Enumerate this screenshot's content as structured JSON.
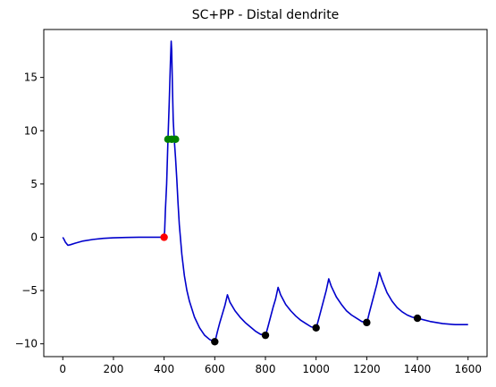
{
  "chart_data": {
    "type": "line",
    "title": "SC+PP - Distal dendrite",
    "xlabel": "",
    "ylabel": "",
    "xlim": [
      -75,
      1675
    ],
    "ylim": [
      -11.2,
      19.5
    ],
    "x_ticks": [
      0,
      200,
      400,
      600,
      800,
      1000,
      1200,
      1400,
      1600
    ],
    "x_tick_labels": [
      "0",
      "200",
      "400",
      "600",
      "800",
      "1000",
      "1200",
      "1400",
      "1600"
    ],
    "y_ticks": [
      -10,
      -5,
      0,
      5,
      10,
      15
    ],
    "y_tick_labels": [
      "−10",
      "−5",
      "0",
      "5",
      "10",
      "15"
    ],
    "grid": false,
    "legend": "none",
    "colors": {
      "line": "#0000cc",
      "red_marker": "#ff0000",
      "green_marker": "#008000",
      "black_marker": "#000000"
    },
    "series": [
      {
        "style": "line",
        "color": "#0000cc",
        "x": [
          0,
          5,
          10,
          20,
          30,
          50,
          80,
          120,
          160,
          200,
          250,
          300,
          350,
          398,
          402,
          405,
          410,
          415,
          420,
          425,
          428,
          430,
          433,
          436,
          440,
          445,
          450,
          455,
          460,
          470,
          480,
          490,
          500,
          520,
          540,
          560,
          580,
          600,
          603,
          610,
          620,
          630,
          640,
          650,
          660,
          680,
          700,
          720,
          740,
          760,
          780,
          800,
          803,
          810,
          820,
          830,
          840,
          850,
          860,
          880,
          900,
          920,
          940,
          960,
          980,
          1000,
          1003,
          1010,
          1020,
          1030,
          1040,
          1050,
          1060,
          1080,
          1100,
          1120,
          1140,
          1160,
          1180,
          1200,
          1203,
          1210,
          1220,
          1230,
          1240,
          1250,
          1260,
          1280,
          1300,
          1320,
          1340,
          1360,
          1380,
          1400,
          1450,
          1500,
          1550,
          1600
        ],
        "y": [
          0.0,
          -0.2,
          -0.45,
          -0.75,
          -0.7,
          -0.55,
          -0.35,
          -0.2,
          -0.1,
          -0.05,
          -0.02,
          0.0,
          0.0,
          0.0,
          0.5,
          2.5,
          5.0,
          9.0,
          12.5,
          16.5,
          18.4,
          17.5,
          14.0,
          11.0,
          9.2,
          7.5,
          5.5,
          3.2,
          1.2,
          -1.6,
          -3.6,
          -5.0,
          -6.0,
          -7.5,
          -8.5,
          -9.2,
          -9.6,
          -9.8,
          -9.6,
          -8.9,
          -8.0,
          -7.2,
          -6.4,
          -5.4,
          -6.1,
          -6.9,
          -7.5,
          -8.0,
          -8.4,
          -8.8,
          -9.1,
          -9.2,
          -9.0,
          -8.4,
          -7.5,
          -6.6,
          -5.8,
          -4.7,
          -5.4,
          -6.3,
          -6.9,
          -7.4,
          -7.8,
          -8.1,
          -8.4,
          -8.5,
          -8.3,
          -7.7,
          -6.8,
          -5.9,
          -5.0,
          -3.9,
          -4.6,
          -5.6,
          -6.3,
          -6.9,
          -7.3,
          -7.6,
          -7.9,
          -8.0,
          -7.8,
          -7.1,
          -6.2,
          -5.3,
          -4.4,
          -3.3,
          -4.0,
          -5.2,
          -6.0,
          -6.6,
          -7.0,
          -7.3,
          -7.5,
          -7.6,
          -7.9,
          -8.1,
          -8.2,
          -8.2
        ]
      },
      {
        "style": "scatter",
        "color": "#ff0000",
        "x": [
          400
        ],
        "y": [
          0.0
        ]
      },
      {
        "style": "scatter",
        "color": "#008000",
        "x": [
          415,
          430,
          445
        ],
        "y": [
          9.2,
          9.2,
          9.2
        ]
      },
      {
        "style": "scatter",
        "color": "#000000",
        "x": [
          600,
          800,
          1000,
          1200,
          1400
        ],
        "y": [
          -9.8,
          -9.2,
          -8.5,
          -8.0,
          -7.6
        ]
      }
    ]
  }
}
